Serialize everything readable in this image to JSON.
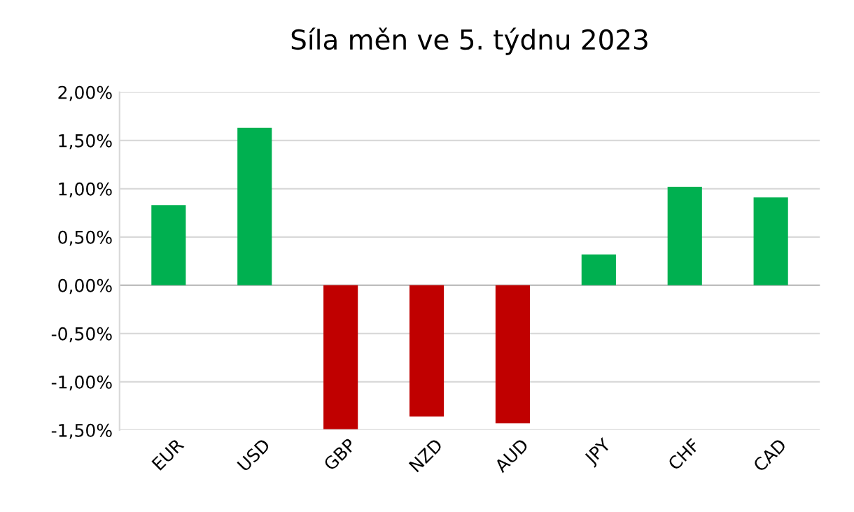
{
  "chart_data": {
    "type": "bar",
    "title": "Síla měn ve 5. týdnu 2023",
    "categories": [
      "EUR",
      "USD",
      "GBP",
      "NZD",
      "AUD",
      "JPY",
      "CHF",
      "CAD"
    ],
    "values": [
      0.83,
      1.63,
      -1.49,
      -1.36,
      -1.43,
      0.32,
      1.02,
      0.91
    ],
    "colors": [
      "#00b050",
      "#00b050",
      "#c00000",
      "#c00000",
      "#c00000",
      "#00b050",
      "#00b050",
      "#00b050"
    ],
    "ylim": [
      -1.5,
      2.0
    ],
    "yticks": [
      {
        "value": -1.5,
        "label": "-1,50%"
      },
      {
        "value": -1.0,
        "label": "-1,00%"
      },
      {
        "value": -0.5,
        "label": "-0,50%"
      },
      {
        "value": 0,
        "label": "0,00%"
      },
      {
        "value": 0.5,
        "label": "0,50%"
      },
      {
        "value": 1.0,
        "label": "1,00%"
      },
      {
        "value": 1.5,
        "label": "1,50%"
      },
      {
        "value": 2.0,
        "label": "2,00%"
      }
    ],
    "grid": "y",
    "legend": false
  }
}
